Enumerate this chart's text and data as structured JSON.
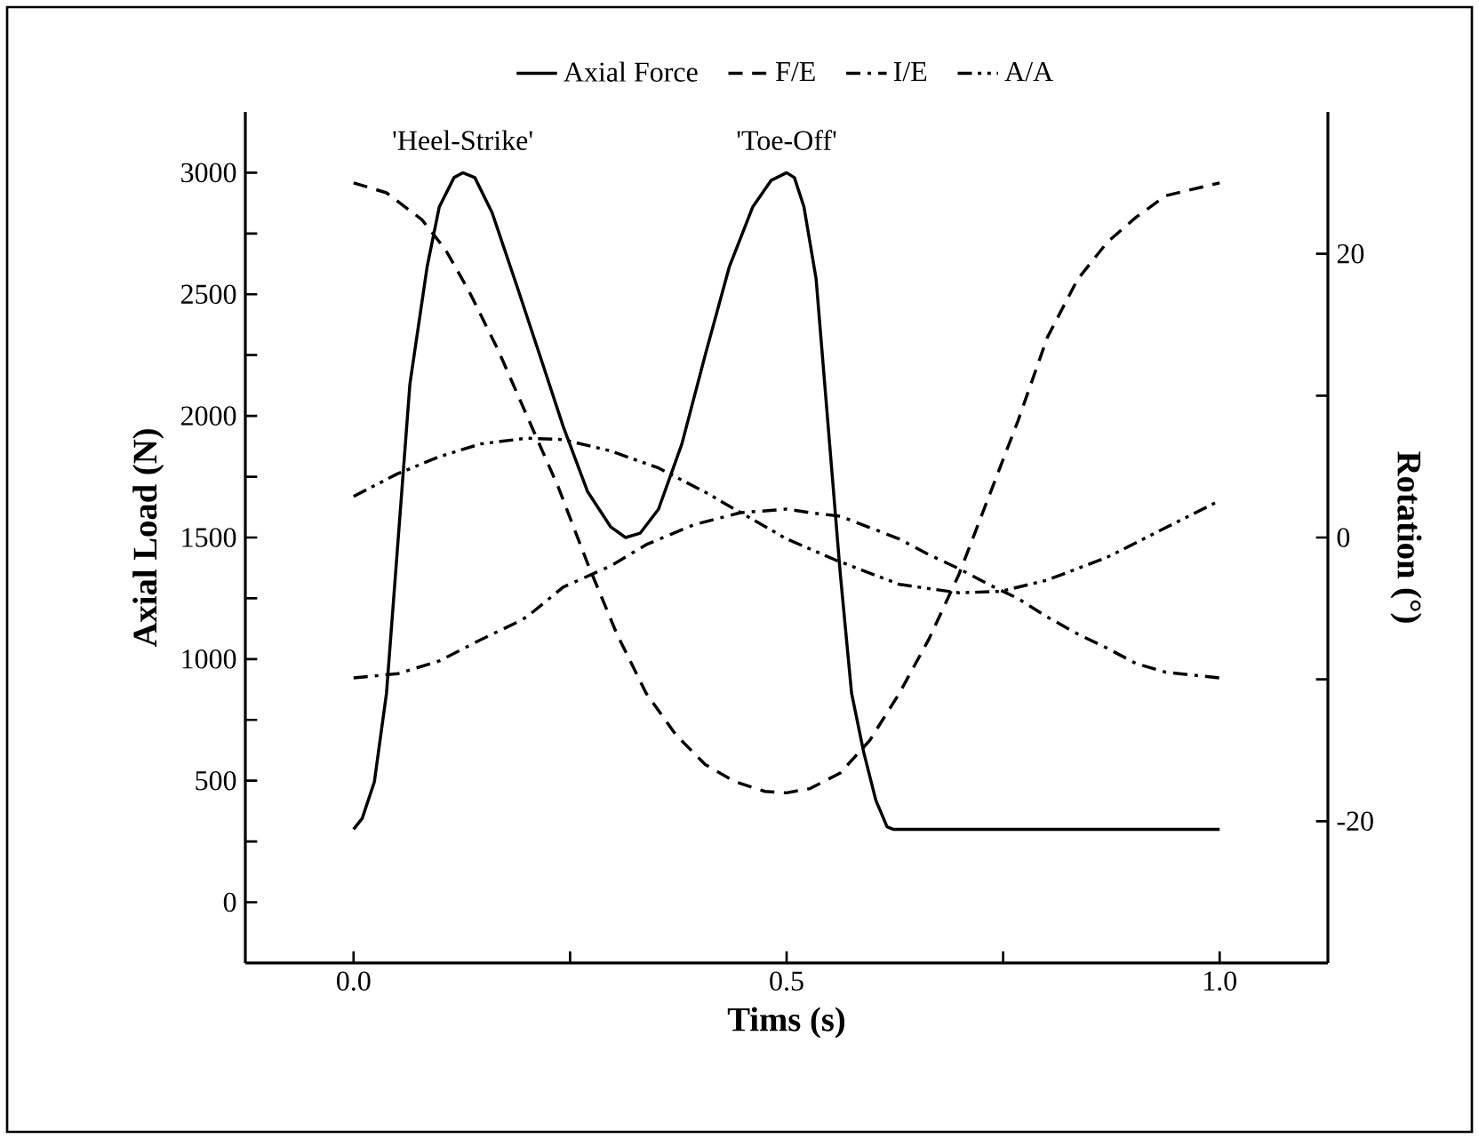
{
  "chart_data": {
    "type": "line",
    "xlabel": "Tims (s)",
    "ylabel": "Axial Load (N)",
    "y2label": "Rotation (°)",
    "xlim": [
      -0.125,
      1.125
    ],
    "xticks": [
      {
        "value": 0,
        "label": "0.0"
      },
      {
        "value": 0.25,
        "label": null
      },
      {
        "value": 0.5,
        "label": "0.5"
      },
      {
        "value": 0.75,
        "label": null
      },
      {
        "value": 1,
        "label": "1.0"
      }
    ],
    "ylim": [
      -250,
      3250
    ],
    "yticks": [
      0,
      {
        "value": 250,
        "label": null
      },
      500,
      {
        "value": 750,
        "label": null
      },
      1000,
      {
        "value": 1250,
        "label": null
      },
      1500,
      {
        "value": 1750,
        "label": null
      },
      2000,
      {
        "value": 2250,
        "label": null
      },
      2500,
      {
        "value": 2750,
        "label": null
      },
      3000
    ],
    "y2lim": [
      -30,
      30
    ],
    "y2ticks": [
      -20,
      {
        "value": -10,
        "label": null
      },
      0,
      {
        "value": 10,
        "label": null
      },
      20
    ],
    "legend": "top",
    "grid": false,
    "marker": "none",
    "annotations": [
      {
        "text": "'Heel-Strike'",
        "x": 0.126,
        "y": 3000
      },
      {
        "text": "'Toe-Off'",
        "x": 0.5,
        "y": 3000
      }
    ],
    "series": [
      {
        "name": "Axial Force",
        "color": "#000000",
        "line_style": "solid",
        "x": [
          0,
          0.01,
          0.024,
          0.038,
          0.051,
          0.065,
          0.085,
          0.099,
          0.116,
          0.126,
          0.14,
          0.16,
          0.188,
          0.215,
          0.242,
          0.27,
          0.297,
          0.314,
          0.331,
          0.352,
          0.379,
          0.406,
          0.434,
          0.461,
          0.482,
          0.5,
          0.509,
          0.52,
          0.534,
          0.548,
          0.562,
          0.575,
          0.589,
          0.603,
          0.616,
          0.623,
          1.0
        ],
        "values": [
          300,
          345,
          495,
          860,
          1470,
          2130,
          2615,
          2860,
          2980,
          3000,
          2980,
          2835,
          2540,
          2250,
          1957,
          1690,
          1543,
          1500,
          1518,
          1616,
          1884,
          2250,
          2615,
          2860,
          2968,
          3000,
          2980,
          2860,
          2565,
          1957,
          1350,
          860,
          617,
          420,
          310,
          300,
          300
        ]
      },
      {
        "name": "F/E",
        "color": "#000000",
        "line_style": "dashed",
        "axis": "y2",
        "x": [
          0,
          0.038,
          0.079,
          0.106,
          0.133,
          0.167,
          0.2,
          0.236,
          0.27,
          0.304,
          0.338,
          0.372,
          0.406,
          0.44,
          0.475,
          0.5,
          0.527,
          0.562,
          0.596,
          0.63,
          0.664,
          0.699,
          0.733,
          0.767,
          0.801,
          0.836,
          0.87,
          0.904,
          0.938,
          1.0
        ],
        "values": [
          25,
          24.3,
          22.4,
          20.3,
          17.4,
          13.2,
          8.6,
          3.6,
          -1.8,
          -6.8,
          -11,
          -13.9,
          -16,
          -17.2,
          -17.9,
          -18,
          -17.7,
          -16.6,
          -14.3,
          -11,
          -7.2,
          -2.6,
          2.8,
          8.2,
          14.1,
          18.2,
          20.8,
          22.6,
          24.1,
          25
        ]
      },
      {
        "name": "I/E",
        "color": "#000000",
        "line_style": "dashdot",
        "axis": "y2",
        "x": [
          0,
          0.051,
          0.099,
          0.147,
          0.188,
          0.2,
          0.242,
          0.297,
          0.338,
          0.393,
          0.447,
          0.5,
          0.527,
          0.562,
          0.596,
          0.63,
          0.664,
          0.699,
          0.733,
          0.767,
          0.801,
          0.836,
          0.87,
          0.904,
          0.938,
          1.0
        ],
        "values": [
          -9.9,
          -9.6,
          -8.7,
          -7.2,
          -6.0,
          -5.6,
          -3.5,
          -2.0,
          -0.5,
          0.9,
          1.75,
          2.0,
          1.75,
          1.5,
          0.7,
          -0.1,
          -1.2,
          -2.2,
          -3.3,
          -4.3,
          -5.6,
          -6.8,
          -7.8,
          -8.9,
          -9.5,
          -9.9
        ]
      },
      {
        "name": "A/A",
        "color": "#000000",
        "line_style": "dashdotdot",
        "axis": "y2",
        "x": [
          0,
          0.051,
          0.099,
          0.147,
          0.2,
          0.242,
          0.297,
          0.352,
          0.406,
          0.447,
          0.5,
          0.557,
          0.63,
          0.699,
          0.747,
          0.801,
          0.87,
          0.938,
          1.0
        ],
        "values": [
          2.9,
          4.5,
          5.7,
          6.6,
          7.0,
          6.9,
          6.1,
          4.9,
          3.2,
          1.75,
          -0.1,
          -1.6,
          -3.3,
          -3.9,
          -3.8,
          -3.0,
          -1.4,
          0.7,
          2.6
        ]
      }
    ]
  }
}
